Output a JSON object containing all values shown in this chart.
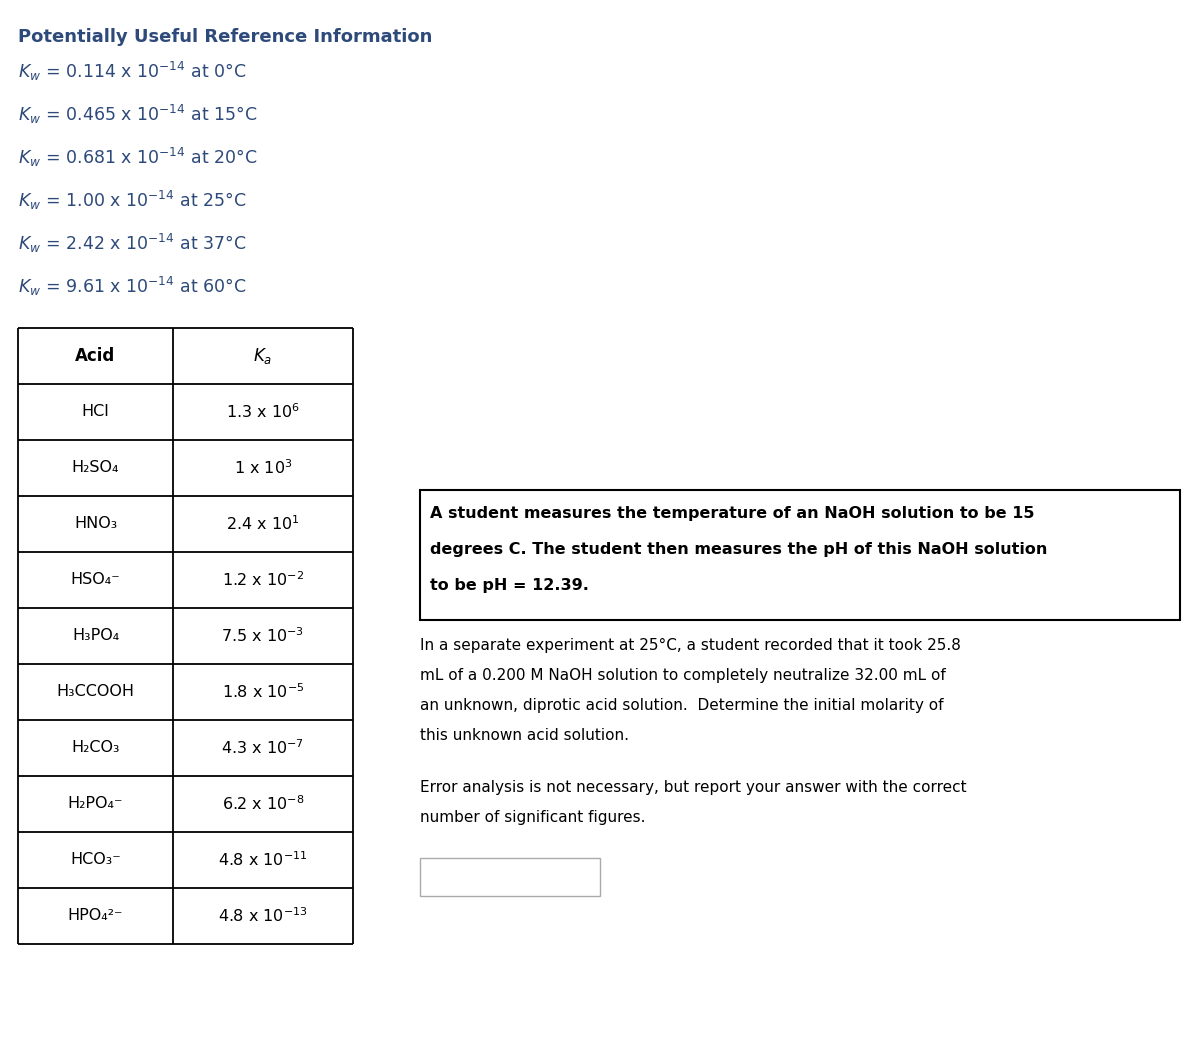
{
  "title": "Potentially Useful Reference Information",
  "kw_lines": [
    {
      "rest": " = 0.114 x 10",
      "sup": "-14",
      "tail": " at 0°C"
    },
    {
      "rest": " = 0.465 x 10",
      "sup": "-14",
      "tail": " at 15°C"
    },
    {
      "rest": " = 0.681 x 10",
      "sup": "-14",
      "tail": " at 20°C"
    },
    {
      "rest": " = 1.00 x 10",
      "sup": "-14",
      "tail": " at 25°C"
    },
    {
      "rest": " = 2.42 x 10",
      "sup": "-14",
      "tail": " at 37°C"
    },
    {
      "rest": " = 9.61 x 10",
      "sup": "-14",
      "tail": " at 60°C"
    }
  ],
  "table_acids": [
    {
      "acid": "HCl",
      "ka": "1.3 x 10",
      "ka_sup": "6"
    },
    {
      "acid": "H₂SO₄",
      "ka": "1 x 10",
      "ka_sup": "3"
    },
    {
      "acid": "HNO₃",
      "ka": "2.4 x 10",
      "ka_sup": "1"
    },
    {
      "acid": "HSO₄⁻",
      "ka": "1.2 x 10",
      "ka_sup": "-2"
    },
    {
      "acid": "H₃PO₄",
      "ka": "7.5 x 10",
      "ka_sup": "-3"
    },
    {
      "acid": "H₃CCOOH",
      "ka": "1.8 x 10",
      "ka_sup": "-5"
    },
    {
      "acid": "H₂CO₃",
      "ka": "4.3 x 10",
      "ka_sup": "-7"
    },
    {
      "acid": "H₂PO₄⁻",
      "ka": "6.2 x 10",
      "ka_sup": "-8"
    },
    {
      "acid": "HCO₃⁻",
      "ka": "4.8 x 10",
      "ka_sup": "-11"
    },
    {
      "acid": "HPO₄²⁻",
      "ka": "4.8 x 10",
      "ka_sup": "-13"
    }
  ],
  "bold_lines": [
    "A student measures the temperature of an NaOH solution to be 15",
    "degrees C. The student then measures the pH of this NaOH solution",
    "to be pH = 12.39."
  ],
  "normal_lines1": [
    "In a separate experiment at 25°C, a student recorded that it took 25.8",
    "mL of a 0.200 M NaOH solution to completely neutralize 32.00 mL of",
    "an unknown, diprotic acid solution.  Determine the initial molarity of",
    "this unknown acid solution."
  ],
  "normal_lines2": [
    "Error analysis is not necessary, but report your answer with the correct",
    "number of significant figures."
  ],
  "bg_color": "#ffffff",
  "text_color": "#000000",
  "kw_color": "#2e4a7a"
}
